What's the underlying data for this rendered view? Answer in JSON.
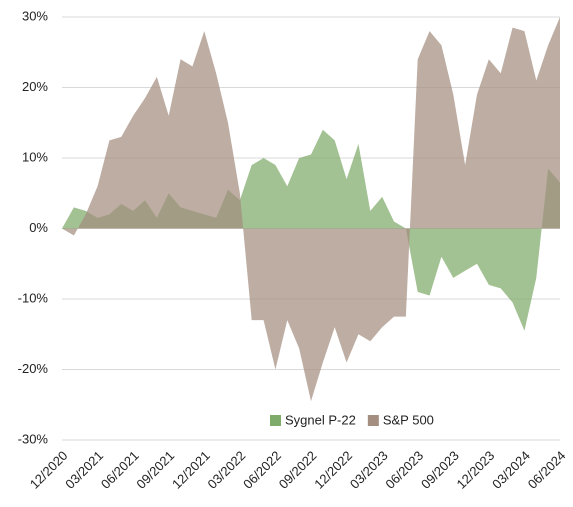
{
  "chart_data": {
    "type": "area",
    "categories": [
      "12/2020",
      null,
      null,
      "03/2021",
      null,
      null,
      "06/2021",
      null,
      null,
      "09/2021",
      null,
      null,
      "12/2021",
      null,
      null,
      "03/2022",
      null,
      null,
      "06/2022",
      null,
      null,
      "09/2022",
      null,
      null,
      "12/2022",
      null,
      null,
      "03/2023",
      null,
      null,
      "06/2023",
      null,
      null,
      "09/2023",
      null,
      null,
      "12/2023",
      null,
      null,
      "03/2024",
      null,
      null,
      "06/2024"
    ],
    "series": [
      {
        "name": "Sygnel P-22",
        "color": "#7fab6a",
        "values": [
          0,
          3,
          2.5,
          1.5,
          2,
          3.5,
          2.5,
          4,
          1.5,
          5,
          3,
          2.5,
          2,
          1.5,
          5.5,
          4,
          9,
          10,
          9,
          6,
          10,
          10.5,
          14,
          12.5,
          7,
          12,
          2.5,
          4.5,
          1,
          0,
          -9,
          -9.5,
          -4,
          -7,
          -6,
          -5,
          -8,
          -8.5,
          -10.5,
          -14.5,
          -7,
          8.5,
          6.5
        ]
      },
      {
        "name": "S&P 500",
        "color": "#a38e80",
        "values": [
          0,
          -1,
          2,
          6,
          12.5,
          13,
          16,
          18.5,
          21.5,
          16,
          24,
          23,
          28,
          22,
          15,
          5,
          -13,
          -13,
          -20,
          -13,
          -17,
          -24.5,
          -19,
          -14,
          -19,
          -15,
          -16,
          -14,
          -12.5,
          -12.5,
          24,
          28,
          26,
          19,
          9,
          19,
          24,
          22,
          28.5,
          28,
          21,
          26,
          30
        ]
      }
    ],
    "ylim": [
      -30,
      30
    ],
    "yticks": [
      {
        "value": -30,
        "label": "-30%"
      },
      {
        "value": -20,
        "label": "-20%"
      },
      {
        "value": -10,
        "label": "-10%"
      },
      {
        "value": 0,
        "label": "0%"
      },
      {
        "value": 10,
        "label": "10%"
      },
      {
        "value": 20,
        "label": "20%"
      },
      {
        "value": 30,
        "label": "30%"
      }
    ],
    "grid": true,
    "legend": "bottom"
  }
}
